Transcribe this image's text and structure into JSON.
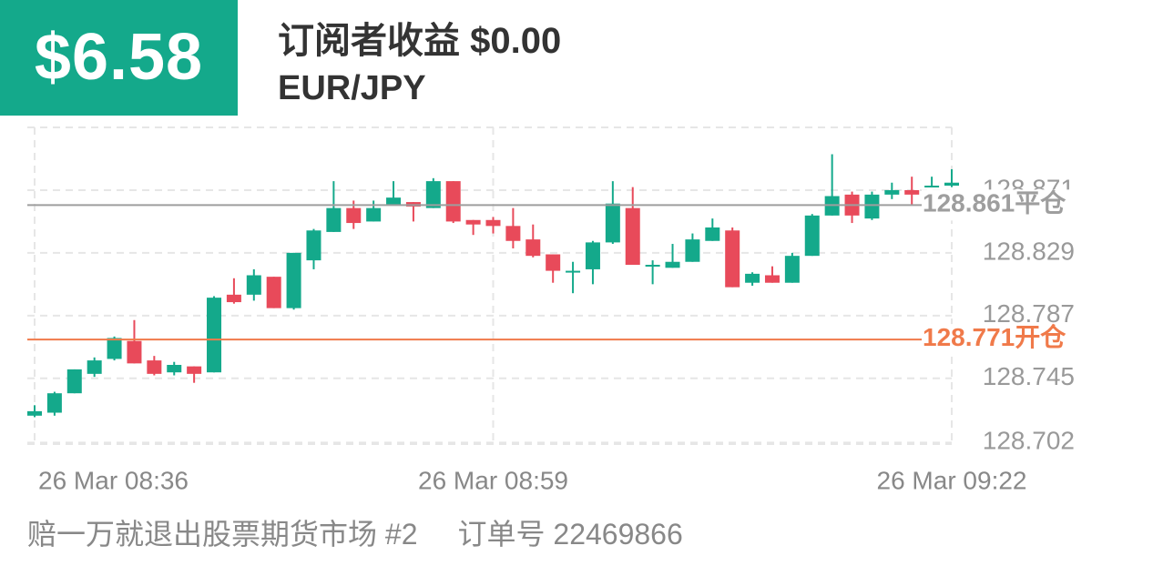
{
  "header": {
    "amount": "$6.58",
    "title": "订阅者收益 $0.00",
    "symbol": "EUR/JPY"
  },
  "footer": {
    "name": "赔一万就退出股票期货市场 #2",
    "order": "订单号 22469866"
  },
  "chart_data": {
    "type": "candlestick",
    "x": [
      0,
      1,
      2,
      3,
      4,
      5,
      6,
      7,
      8,
      9,
      10,
      11,
      12,
      13,
      14,
      15,
      16,
      17,
      18,
      19,
      20,
      21,
      22,
      23,
      24,
      25,
      26,
      27,
      28,
      29,
      30,
      31,
      32,
      33,
      34,
      35,
      36,
      37,
      38,
      39,
      40,
      41,
      42,
      43,
      44,
      45,
      46
    ],
    "open": [
      128.72,
      128.722,
      128.735,
      128.748,
      128.758,
      128.77,
      128.757,
      128.749,
      128.753,
      128.749,
      128.801,
      128.801,
      128.813,
      128.792,
      128.824,
      128.843,
      128.859,
      128.85,
      128.861,
      128.863,
      128.859,
      128.877,
      128.851,
      128.851,
      128.847,
      128.838,
      128.828,
      128.816,
      128.818,
      128.836,
      128.859,
      128.82,
      128.819,
      128.823,
      128.837,
      128.844,
      128.809,
      128.814,
      128.809,
      128.827,
      128.854,
      128.868,
      128.852,
      128.868,
      128.871,
      128.873,
      128.874
    ],
    "high": [
      128.727,
      128.736,
      128.751,
      128.759,
      128.773,
      128.784,
      128.76,
      128.756,
      128.753,
      128.8,
      128.812,
      128.818,
      128.813,
      128.829,
      128.845,
      128.877,
      128.864,
      128.864,
      128.877,
      128.863,
      128.879,
      128.877,
      128.851,
      128.853,
      128.859,
      128.848,
      128.828,
      128.823,
      128.837,
      128.877,
      128.873,
      128.824,
      128.835,
      128.842,
      128.852,
      128.846,
      128.816,
      128.82,
      128.829,
      128.855,
      128.895,
      128.87,
      128.87,
      128.876,
      128.88,
      128.88,
      128.885
    ],
    "low": [
      128.719,
      128.72,
      128.735,
      128.746,
      128.757,
      128.755,
      128.747,
      128.747,
      128.742,
      128.749,
      128.795,
      128.797,
      128.792,
      128.791,
      128.818,
      128.843,
      128.845,
      128.85,
      128.861,
      128.85,
      128.859,
      128.849,
      128.841,
      128.842,
      128.832,
      128.826,
      128.809,
      128.802,
      128.808,
      128.835,
      128.821,
      128.808,
      128.819,
      128.823,
      128.837,
      128.806,
      128.807,
      128.809,
      128.809,
      128.827,
      128.854,
      128.849,
      128.851,
      128.865,
      128.861,
      128.873,
      128.873
    ],
    "close": [
      128.723,
      128.735,
      128.751,
      128.757,
      128.772,
      128.755,
      128.748,
      128.754,
      128.748,
      128.799,
      128.796,
      128.814,
      128.792,
      128.829,
      128.844,
      128.859,
      128.849,
      128.859,
      128.866,
      128.86,
      128.877,
      128.85,
      128.848,
      128.847,
      128.837,
      128.827,
      128.817,
      128.817,
      128.836,
      128.862,
      128.821,
      128.821,
      128.823,
      128.838,
      128.846,
      128.806,
      128.815,
      128.809,
      128.827,
      128.854,
      128.867,
      128.854,
      128.868,
      128.871,
      128.868,
      128.874,
      128.876
    ],
    "up_color": "#14a98b",
    "down_color": "#e84a5a",
    "xlim": [
      0,
      46
    ],
    "xticks": [
      {
        "value": 0,
        "label": "26 Mar  08:36"
      },
      {
        "value": 23,
        "label": "26 Mar  08:59"
      },
      {
        "value": 46,
        "label": "26 Mar  09:22"
      }
    ],
    "ylim": [
      128.701,
      128.913
    ],
    "yticks": [
      128.702,
      128.745,
      128.787,
      128.829,
      128.871
    ],
    "grid": true,
    "reference_lines": [
      {
        "value": 128.861,
        "text": "平仓",
        "color": "#9e9e9e"
      },
      {
        "value": 128.771,
        "text": "开仓",
        "color": "#f07a4a"
      }
    ]
  }
}
